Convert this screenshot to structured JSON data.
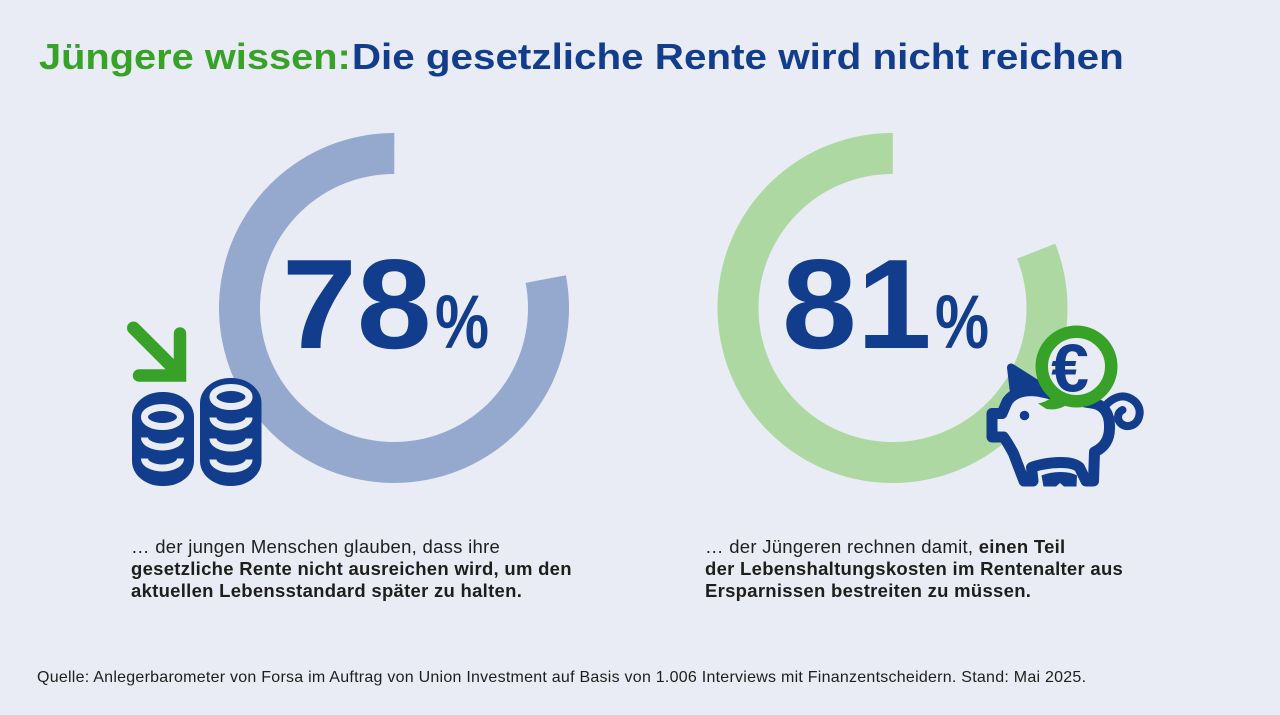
{
  "title": {
    "highlight": "Jüngere wissen:",
    "main": "Die gesetzliche Rente wird nicht reichen"
  },
  "colors": {
    "background": "#e9ecf5",
    "accent_green": "#38a228",
    "brand_blue": "#113d8c",
    "ring_blue_gray": "#95a9ce",
    "ring_light_green": "#aed8a1",
    "body_text": "#1e1e1c"
  },
  "chart_data": [
    {
      "type": "donut",
      "value": 78,
      "value_label": "78",
      "unit": "%",
      "ring_color": "#95a9ce",
      "gap_start_deg": 0,
      "note": "arc covers 78% of circle, gap at top-right"
    },
    {
      "type": "donut",
      "value": 81,
      "value_label": "81",
      "unit": "%",
      "ring_color": "#aed8a1",
      "gap_start_deg": 0,
      "note": "arc covers 81% of circle, gap at top-right"
    }
  ],
  "panels": [
    {
      "icon": "coins-with-down-arrow",
      "caption": {
        "line1_regular": "… der jungen Menschen glauben, dass ihre",
        "line1_bold": "",
        "line2_bold": "gesetzliche Rente nicht ausreichen wird, um den",
        "line3_bold": "aktuellen Lebensstandard später zu halten."
      }
    },
    {
      "icon": "piggy-bank-with-euro",
      "euro_symbol": "€",
      "caption": {
        "line1_regular": "… der Jüngeren rechnen damit, ",
        "line1_bold": "einen Teil",
        "line2_bold": "der Lebenshaltungskosten im Rentenalter aus",
        "line3_bold": "Ersparnissen bestreiten zu müssen."
      }
    }
  ],
  "source_line": "Quelle: Anlegerbarometer von Forsa im Auftrag von Union Investment auf Basis von 1.006 Interviews mit Finanzentscheidern. Stand: Mai 2025."
}
